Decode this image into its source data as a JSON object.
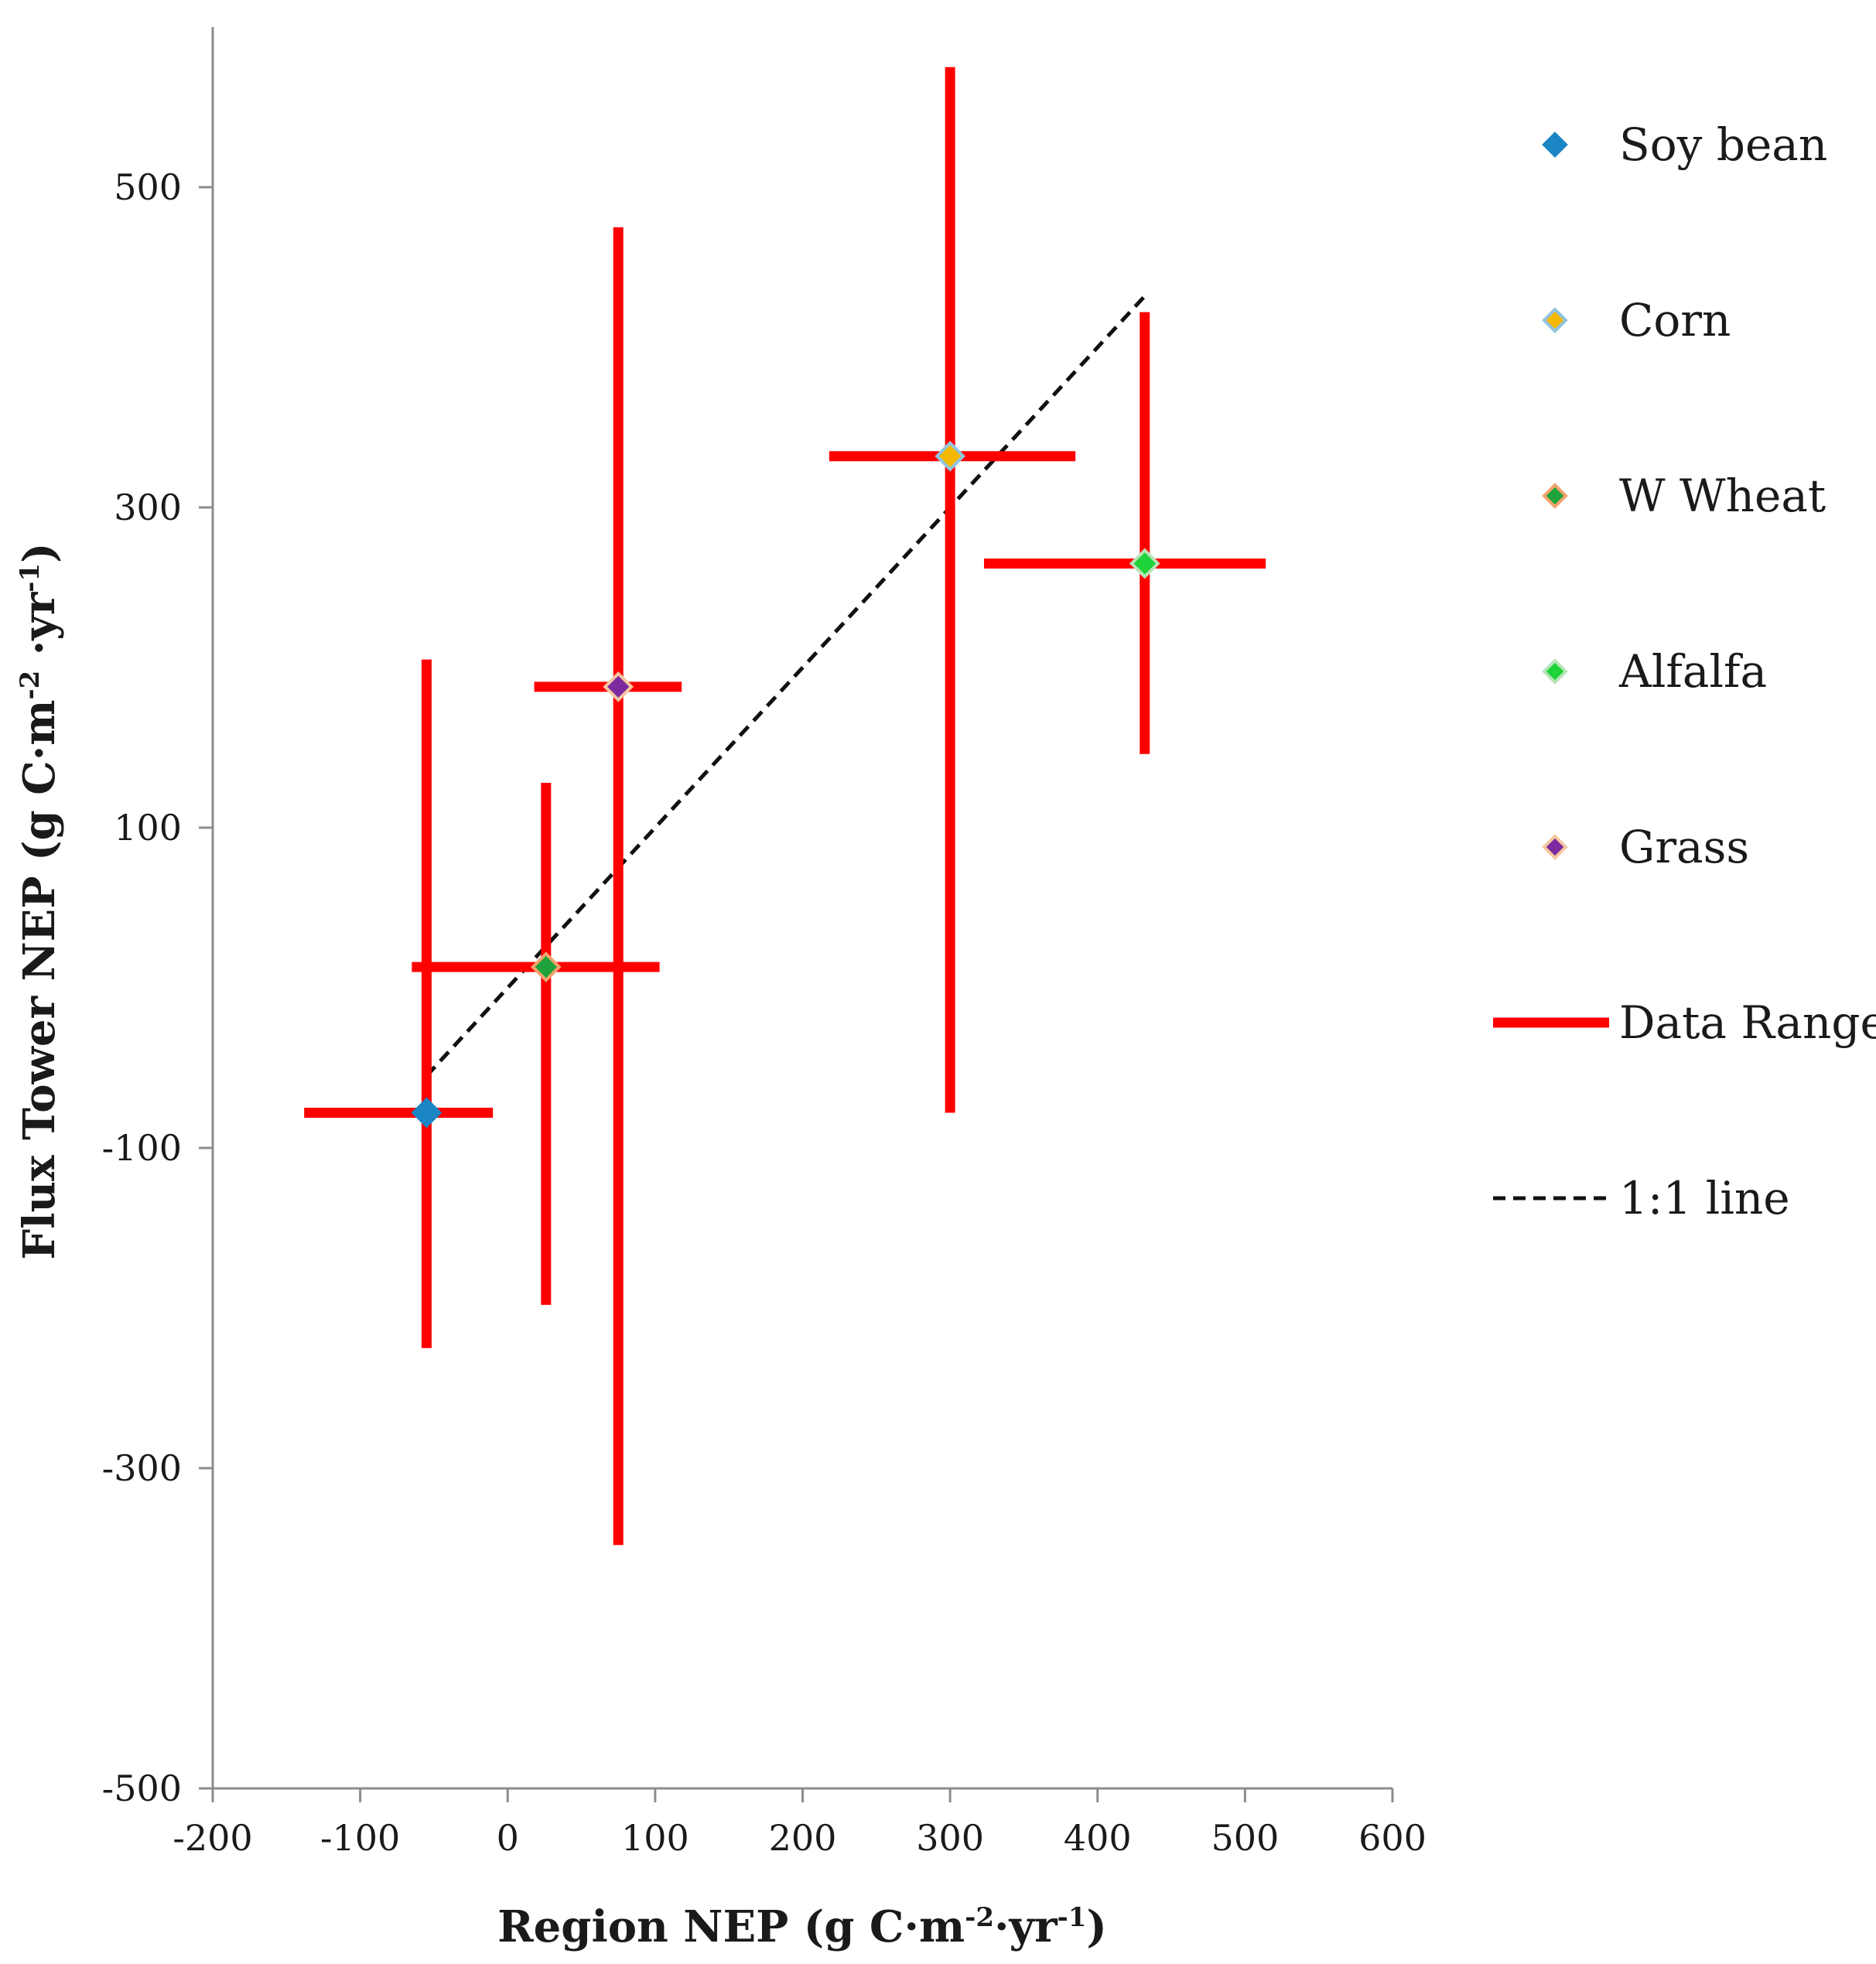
{
  "chart_data": {
    "type": "scatter",
    "title": "",
    "xlabel": {
      "main": "Region NEP (g C·m",
      "sup1": "-2",
      "mid": "·yr",
      "sup2": "-1",
      "end": ")"
    },
    "ylabel": {
      "main": "Flux Tower NEP (g C·m",
      "sup1": "-2",
      "mid": " ·yr",
      "sup2": "-1",
      "end": ")"
    },
    "xlim": [
      -200,
      600
    ],
    "ylim": [
      -500,
      600
    ],
    "xticks": [
      -200,
      -100,
      0,
      100,
      200,
      300,
      400,
      500,
      600
    ],
    "xtick_labels": [
      "-200",
      "-100",
      "0",
      "100",
      "200",
      "300",
      "400",
      "500",
      "600"
    ],
    "yticks": [
      -500,
      -300,
      -100,
      100,
      300,
      500
    ],
    "ytick_labels": [
      "-500",
      "-300",
      "-100",
      "100",
      "300",
      "500"
    ],
    "series": [
      {
        "name": "Soy bean",
        "color": "#1a86c4",
        "edge": "#1a86c4",
        "x": -55,
        "y": -78,
        "x_range": [
          -138,
          -10
        ],
        "y_range": [
          -225,
          205
        ]
      },
      {
        "name": "Corn",
        "color": "#f5b800",
        "edge": "#8fc4e0",
        "x": 300,
        "y": 332,
        "x_range": [
          218,
          385
        ],
        "y_range": [
          -78,
          575
        ]
      },
      {
        "name": "W Wheat",
        "color": "#1fa23a",
        "edge": "#f2a36e",
        "x": 26,
        "y": 13,
        "x_range": [
          -65,
          103
        ],
        "y_range": [
          -198,
          128
        ]
      },
      {
        "name": "Alfalfa",
        "color": "#1ed23a",
        "edge": "#b7e4b7",
        "x": 432,
        "y": 265,
        "x_range": [
          323,
          514
        ],
        "y_range": [
          146,
          422
        ]
      },
      {
        "name": "Grass",
        "color": "#7d2aa0",
        "edge": "#f5c7a0",
        "x": 75,
        "y": 188,
        "x_range": [
          18,
          118
        ],
        "y_range": [
          -348,
          475
        ]
      }
    ],
    "error_bar_color": "#ff0000",
    "one_to_one_line": {
      "name": "1:1 line",
      "from": -55,
      "to": 432
    },
    "legend": {
      "position": "right",
      "entries": [
        "Soy bean",
        "Corn",
        "W Wheat",
        "Alfalfa",
        "Grass",
        "Data Range",
        "1:1 line"
      ]
    }
  }
}
